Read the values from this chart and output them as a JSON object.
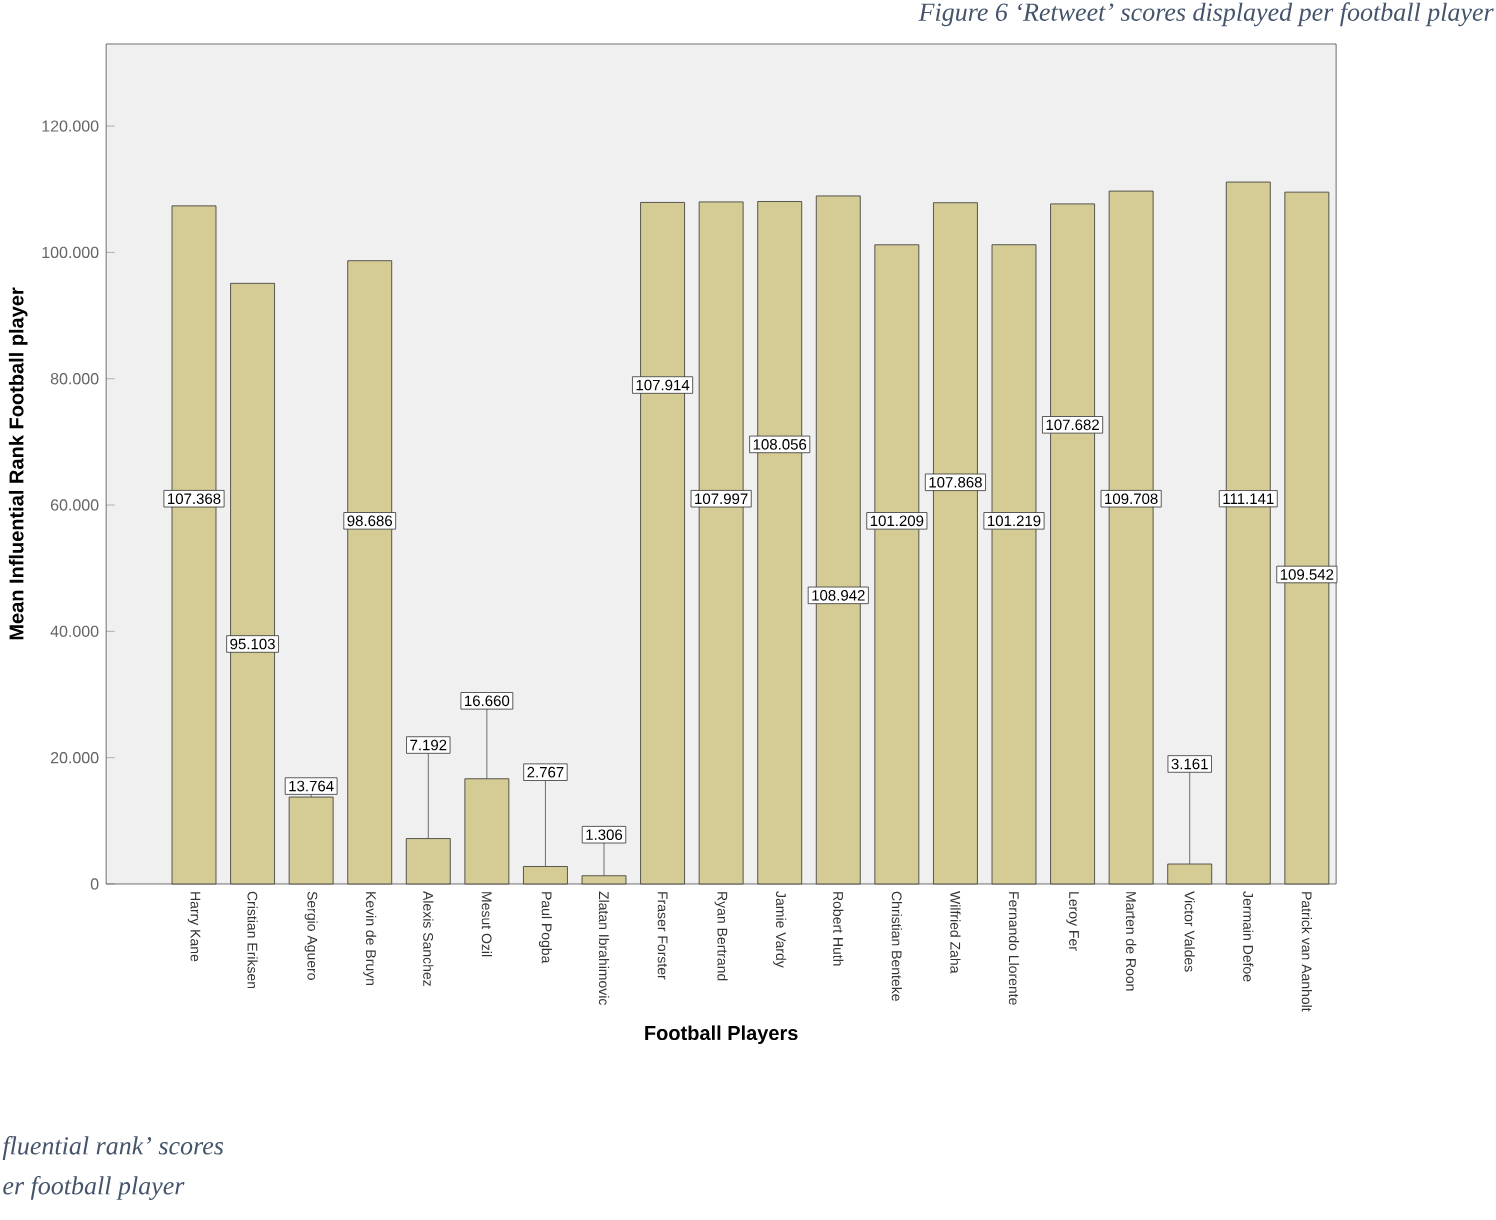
{
  "chart_data": {
    "type": "bar",
    "categories": [
      "Harry Kane",
      "Cristian Eriksen",
      "Sergio Aguero",
      "Kevin de Bruyn",
      "Alexis Sanchez",
      "Mesut Ozil",
      "Paul Pogba",
      "Zlatan Ibrahimovic",
      "Fraser Forster",
      "Ryan Bertrand",
      "Jamie Vardy",
      "Robert Huth",
      "Christian Benteke",
      "Wilfried Zaha",
      "Fernando Llorente",
      "Leroy Fer",
      "Marten de Roon",
      "Victor Valdes",
      "Jermain Defoe",
      "Patrick van Aanholt"
    ],
    "values": [
      107368,
      95103,
      13764,
      98686,
      7192,
      16660,
      2767,
      1306,
      107914,
      107997,
      108056,
      108942,
      101209,
      107868,
      101219,
      107682,
      109708,
      3161,
      111141,
      109542
    ],
    "value_labels": [
      "107.368",
      "95.103",
      "13.764",
      "98.686",
      "7.192",
      "16.660",
      "2.767",
      "1.306",
      "107.914",
      "107.997",
      "108.056",
      "108.942",
      "101.209",
      "107.868",
      "101.219",
      "107.682",
      "109.708",
      "3.161",
      "111.141",
      "109.542"
    ],
    "color": "#d4cc94",
    "xlabel": "Football Players",
    "ylabel": "Mean Influential Rank Football player",
    "ylim": [
      0,
      133000
    ],
    "yticks": [
      0,
      {
        "value": 20000,
        "label": "20.000"
      },
      {
        "value": 40000,
        "label": "40.000"
      },
      {
        "value": 60000,
        "label": "60.000"
      },
      {
        "value": 80000,
        "label": "80.000"
      },
      {
        "value": 100000,
        "label": "100.000"
      },
      {
        "value": 120000,
        "label": "120.000"
      }
    ],
    "grid": false,
    "annotations": [
      "Figure 6 ‘Retweet’ scores displayed per football player",
      "fluential rank’ scores",
      "er football player"
    ]
  }
}
